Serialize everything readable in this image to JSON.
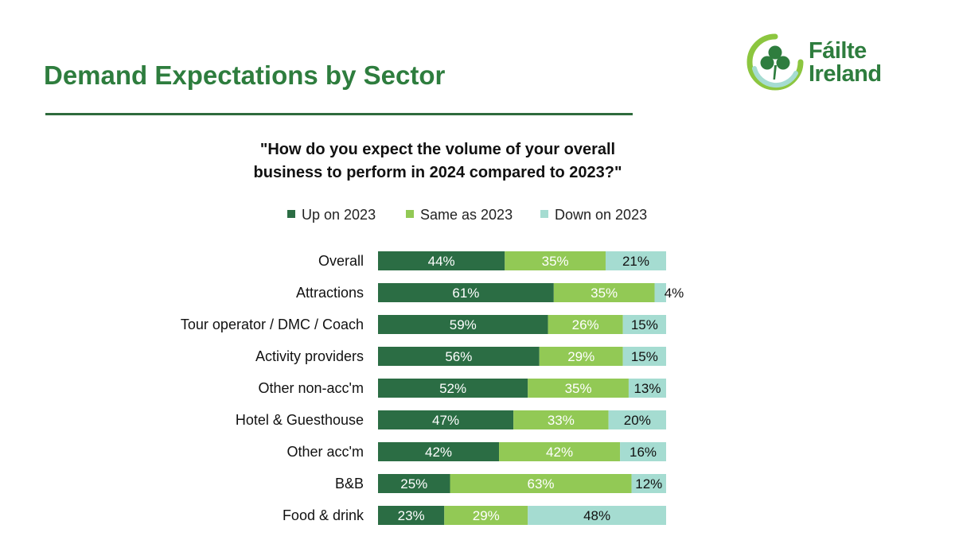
{
  "page_title": "Demand Expectations by Sector",
  "logo": {
    "line1": "Fáilte",
    "line2": "Ireland"
  },
  "colors": {
    "up": "#2b6d44",
    "same": "#92c955",
    "down": "#a5dcd1",
    "title": "#2e7d3e"
  },
  "chart_data": {
    "type": "bar",
    "orientation": "horizontal",
    "stacked": true,
    "title": "\"How do you expect the volume of your overall business to perform in 2024 compared to 2023?\"",
    "title_lines": [
      "\"How do you expect the volume of your overall",
      "business to perform in 2024 compared to 2023?\""
    ],
    "legend_position": "top",
    "categories": [
      "Overall",
      "Attractions",
      "Tour operator / DMC / Coach",
      "Activity providers",
      "Other non-acc'm",
      "Hotel & Guesthouse",
      "Other acc'm",
      "B&B",
      "Food & drink"
    ],
    "series": [
      {
        "name": "Up on 2023",
        "values": [
          44,
          61,
          59,
          56,
          52,
          47,
          42,
          25,
          23
        ]
      },
      {
        "name": "Same as 2023",
        "values": [
          35,
          35,
          26,
          29,
          35,
          33,
          42,
          63,
          29
        ]
      },
      {
        "name": "Down on 2023",
        "values": [
          21,
          4,
          15,
          15,
          13,
          20,
          16,
          12,
          48
        ]
      }
    ],
    "value_suffix": "%",
    "xlim": [
      0,
      100
    ],
    "grid": false
  }
}
